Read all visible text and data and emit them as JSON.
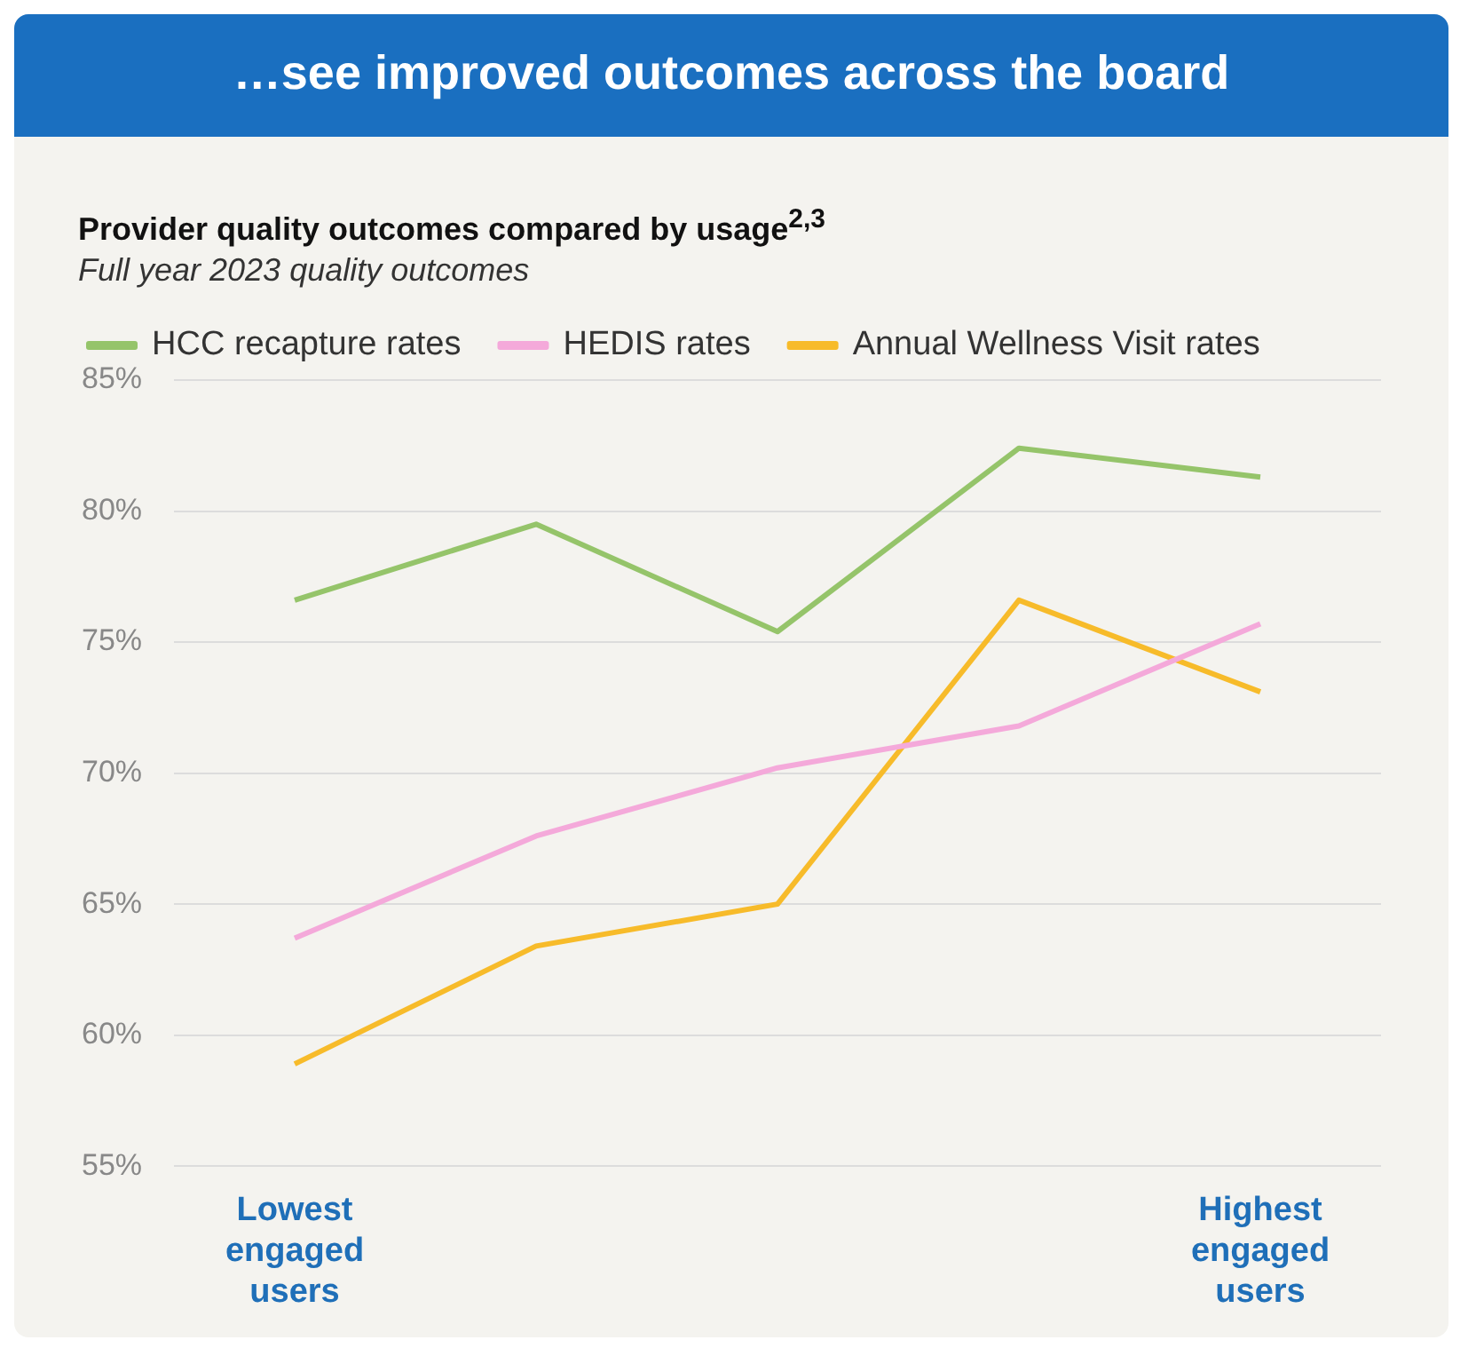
{
  "chart_data": {
    "type": "line",
    "title": "…see improved outcomes across the board",
    "subtitle": "Provider quality outcomes compared by usage$^{2,3}$",
    "annotations": [
      "Full year 2023 quality outcomes"
    ],
    "categories": [
      "Lowest engaged users",
      null,
      null,
      null,
      "Highest engaged users"
    ],
    "series": [
      {
        "name": "HCC recapture rates",
        "color": "#95c46a",
        "values": [
          76.6,
          79.5,
          75.4,
          82.4,
          81.3
        ]
      },
      {
        "name": "HEDIS rates",
        "color": "#f4a9da",
        "values": [
          63.7,
          67.6,
          70.2,
          71.8,
          75.7
        ]
      },
      {
        "name": "Annual Wellness Visit rates",
        "color": "#f7bb2a",
        "values": [
          58.9,
          63.4,
          65.0,
          76.6,
          73.1
        ]
      }
    ],
    "ylim": [
      55,
      85
    ],
    "yticks": [
      {
        "value": 55,
        "label": "55%"
      },
      {
        "value": 60,
        "label": "60%"
      },
      {
        "value": 65,
        "label": "65%"
      },
      {
        "value": 70,
        "label": "70%"
      },
      {
        "value": 75,
        "label": "75%"
      },
      {
        "value": 80,
        "label": "80%"
      },
      {
        "value": 85,
        "label": "85%"
      }
    ],
    "grid": "y",
    "legend": "top",
    "marker": "none",
    "line_style": "solid"
  }
}
